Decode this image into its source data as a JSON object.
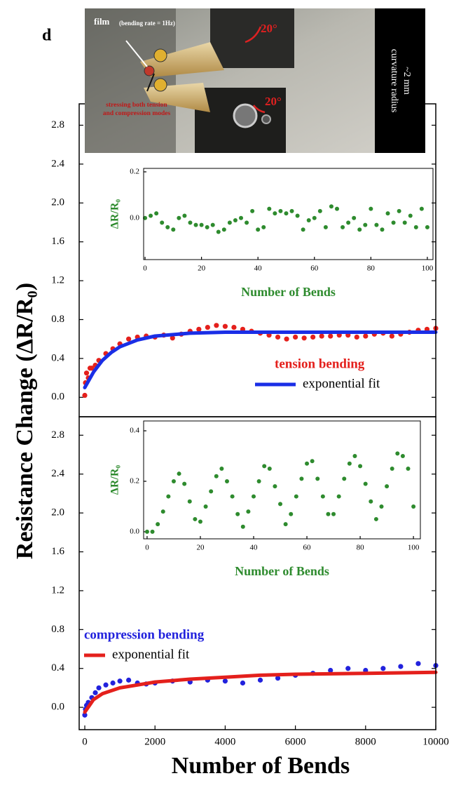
{
  "panel_label": "d",
  "photo": {
    "film_label": "film",
    "rate_label": "(bending rate = 1Hz)",
    "angle_top": "20°",
    "angle_bottom": "20°",
    "stress_note": [
      "stressing both tension",
      "and compression modes"
    ],
    "curvature_label": [
      "curvature radius",
      "~2 mm"
    ]
  },
  "chart_data": [
    {
      "type": "scatter",
      "ylabel": "Resistance Change (ΔR/R₀)",
      "xlim": [
        -160,
        10000
      ],
      "ylim": [
        -0.2,
        3.02
      ],
      "yticks": [
        {
          "value": 0,
          "label": "0.0"
        },
        0.4,
        0.8,
        1.2,
        1.6,
        {
          "value": 2,
          "label": "2.0"
        },
        2.4,
        2.8
      ],
      "legend": "lower right",
      "series": [
        {
          "name": "tension bending",
          "type": "markers",
          "color": "#e4201c",
          "x": [
            0,
            20,
            50,
            100,
            150,
            200,
            300,
            400,
            600,
            800,
            1000,
            1250,
            1500,
            1750,
            2000,
            2250,
            2500,
            2750,
            3000,
            3250,
            3500,
            3750,
            4000,
            4250,
            4500,
            4750,
            5000,
            5250,
            5500,
            5750,
            6000,
            6250,
            6500,
            6750,
            7000,
            7250,
            7500,
            7750,
            8000,
            8250,
            8500,
            8750,
            9000,
            9250,
            9500,
            9750,
            10000
          ],
          "values": [
            0.02,
            0.15,
            0.25,
            0.2,
            0.3,
            0.3,
            0.33,
            0.38,
            0.45,
            0.5,
            0.55,
            0.6,
            0.62,
            0.63,
            0.62,
            0.64,
            0.61,
            0.65,
            0.68,
            0.7,
            0.72,
            0.74,
            0.73,
            0.72,
            0.7,
            0.68,
            0.66,
            0.64,
            0.62,
            0.6,
            0.62,
            0.61,
            0.62,
            0.63,
            0.63,
            0.64,
            0.64,
            0.62,
            0.63,
            0.65,
            0.66,
            0.63,
            0.65,
            0.67,
            0.69,
            0.7,
            0.71
          ]
        },
        {
          "name": "exponential fit",
          "type": "line",
          "color": "#1a2ee6",
          "x": [
            0,
            250,
            500,
            750,
            1000,
            1500,
            2000,
            3000,
            4000,
            6000,
            8000,
            10000
          ],
          "values": [
            0.1,
            0.26,
            0.38,
            0.46,
            0.52,
            0.59,
            0.63,
            0.66,
            0.67,
            0.67,
            0.67,
            0.67
          ]
        }
      ]
    },
    {
      "type": "scatter",
      "xlabel": "Number of Bends",
      "xlim": [
        -160,
        10000
      ],
      "ylim": [
        -0.23,
        2.99
      ],
      "xticks": [
        0,
        2000,
        4000,
        6000,
        8000,
        10000
      ],
      "yticks": [
        {
          "value": 0,
          "label": "0.0"
        },
        0.4,
        0.8,
        1.2,
        1.6,
        {
          "value": 2,
          "label": "2.0"
        },
        2.4,
        2.8
      ],
      "legend": "lower left",
      "series": [
        {
          "name": "compression bending",
          "type": "markers",
          "color": "#2222dd",
          "x": [
            0,
            20,
            50,
            100,
            200,
            300,
            400,
            600,
            800,
            1000,
            1250,
            1500,
            1750,
            2000,
            2500,
            3000,
            3500,
            4000,
            4500,
            5000,
            5500,
            6000,
            6500,
            7000,
            7500,
            8000,
            8500,
            9000,
            9500,
            10000
          ],
          "values": [
            -0.08,
            -0.02,
            0.02,
            0.05,
            0.1,
            0.15,
            0.2,
            0.23,
            0.25,
            0.27,
            0.28,
            0.25,
            0.24,
            0.25,
            0.27,
            0.26,
            0.28,
            0.27,
            0.25,
            0.28,
            0.3,
            0.33,
            0.35,
            0.38,
            0.4,
            0.38,
            0.4,
            0.42,
            0.45,
            0.43
          ]
        },
        {
          "name": "exponential fit",
          "type": "line",
          "color": "#e4201c",
          "x": [
            0,
            250,
            500,
            1000,
            1500,
            2000,
            3000,
            4000,
            5000,
            6000,
            8000,
            10000
          ],
          "values": [
            -0.05,
            0.08,
            0.14,
            0.2,
            0.23,
            0.26,
            0.29,
            0.31,
            0.33,
            0.34,
            0.35,
            0.36
          ]
        }
      ]
    },
    {
      "type": "scatter",
      "xlabel": "Number of Bends",
      "ylabel": "ΔR/R₀",
      "xlim": [
        -0.5,
        102
      ],
      "ylim": [
        -0.18,
        0.215
      ],
      "xticks": [
        0,
        20,
        40,
        60,
        80,
        100
      ],
      "yticks": [
        {
          "value": 0,
          "label": "0.0"
        },
        0.2
      ],
      "series": [
        {
          "type": "markers",
          "color": "#2e8b2e",
          "x": [
            0,
            2,
            4,
            6,
            8,
            10,
            12,
            14,
            16,
            18,
            20,
            22,
            24,
            26,
            28,
            30,
            32,
            34,
            36,
            38,
            40,
            42,
            44,
            46,
            48,
            50,
            52,
            54,
            56,
            58,
            60,
            62,
            64,
            66,
            68,
            70,
            72,
            74,
            76,
            78,
            80,
            82,
            84,
            86,
            88,
            90,
            92,
            94,
            96,
            98,
            100
          ],
          "values": [
            0.0,
            0.01,
            0.02,
            -0.02,
            -0.04,
            -0.05,
            0.0,
            0.01,
            -0.02,
            -0.03,
            -0.03,
            -0.04,
            -0.03,
            -0.06,
            -0.05,
            -0.02,
            -0.01,
            0.0,
            -0.02,
            0.03,
            -0.05,
            -0.04,
            0.04,
            0.02,
            0.03,
            0.02,
            0.03,
            0.01,
            -0.05,
            -0.01,
            0.0,
            0.03,
            -0.04,
            0.05,
            0.04,
            -0.04,
            -0.02,
            0.0,
            -0.05,
            -0.03,
            0.04,
            -0.03,
            -0.05,
            0.02,
            -0.02,
            0.03,
            -0.02,
            0.01,
            -0.04,
            0.04,
            -0.04
          ]
        }
      ]
    },
    {
      "type": "scatter",
      "xlabel": "Number of Bends",
      "ylabel": "ΔR/R₀",
      "xlim": [
        -1.3,
        102.6
      ],
      "ylim": [
        -0.028,
        0.439
      ],
      "xticks": [
        0,
        20,
        40,
        60,
        80,
        100
      ],
      "yticks": [
        {
          "value": 0,
          "label": "0.0"
        },
        0.2,
        0.4
      ],
      "series": [
        {
          "type": "markers",
          "color": "#2e8b2e",
          "x": [
            0,
            2,
            4,
            6,
            8,
            10,
            12,
            14,
            16,
            18,
            20,
            22,
            24,
            26,
            28,
            30,
            32,
            34,
            36,
            38,
            40,
            42,
            44,
            46,
            48,
            50,
            52,
            54,
            56,
            58,
            60,
            62,
            64,
            66,
            68,
            70,
            72,
            74,
            76,
            78,
            80,
            82,
            84,
            86,
            88,
            90,
            92,
            94,
            96,
            98,
            100
          ],
          "values": [
            0.0,
            0.0,
            0.03,
            0.08,
            0.14,
            0.2,
            0.23,
            0.19,
            0.12,
            0.05,
            0.04,
            0.1,
            0.16,
            0.22,
            0.25,
            0.2,
            0.14,
            0.07,
            0.02,
            0.08,
            0.14,
            0.2,
            0.26,
            0.25,
            0.18,
            0.11,
            0.03,
            0.07,
            0.14,
            0.21,
            0.27,
            0.28,
            0.21,
            0.14,
            0.07,
            0.07,
            0.14,
            0.21,
            0.27,
            0.3,
            0.26,
            0.19,
            0.12,
            0.05,
            0.1,
            0.18,
            0.25,
            0.31,
            0.3,
            0.25,
            0.1
          ]
        }
      ]
    }
  ]
}
